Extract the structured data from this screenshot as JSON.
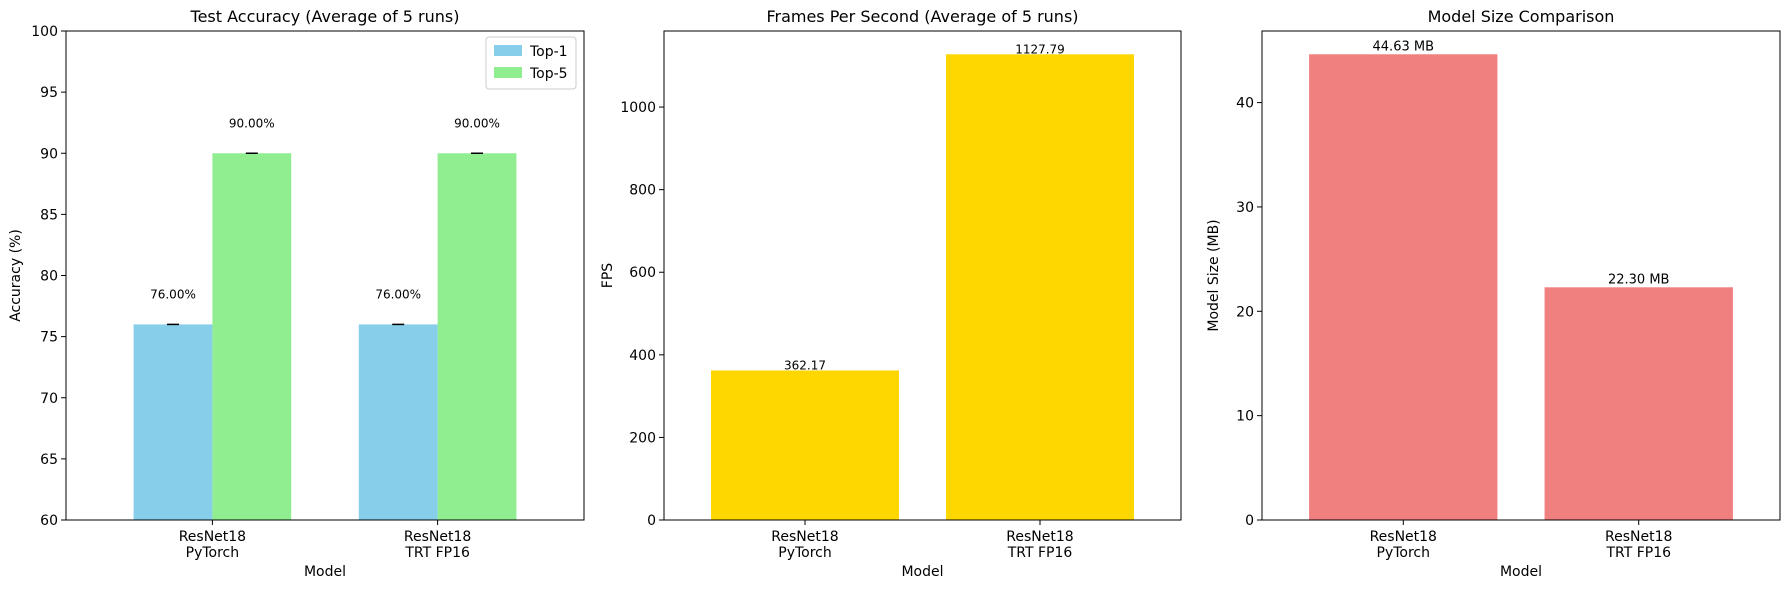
{
  "chart_data": [
    {
      "type": "bar",
      "title": "Test Accuracy (Average of 5 runs)",
      "xlabel": "Model",
      "ylabel": "Accuracy (%)",
      "categories": [
        [
          "ResNet18",
          "PyTorch"
        ],
        [
          "ResNet18",
          "TRT FP16"
        ]
      ],
      "ylim": [
        60,
        100
      ],
      "yticks": [
        60,
        65,
        70,
        75,
        80,
        85,
        90,
        95,
        100
      ],
      "grid": false,
      "legend": "top-right",
      "error_bars": true,
      "series": [
        {
          "name": "Top-1",
          "values": [
            76.0,
            76.0
          ],
          "labels": [
            "76.00%",
            "76.00%"
          ],
          "color": "#87ceeb"
        },
        {
          "name": "Top-5",
          "values": [
            90.0,
            90.0
          ],
          "labels": [
            "90.00%",
            "90.00%"
          ],
          "color": "#90ee90"
        }
      ]
    },
    {
      "type": "bar",
      "title": "Frames Per Second (Average of 5 runs)",
      "xlabel": "Model",
      "ylabel": "FPS",
      "categories": [
        [
          "ResNet18",
          "PyTorch"
        ],
        [
          "ResNet18",
          "TRT FP16"
        ]
      ],
      "ylim": [
        0,
        1184.2
      ],
      "yticks": [
        0,
        200,
        400,
        600,
        800,
        1000
      ],
      "grid": false,
      "series": [
        {
          "values": [
            362.17,
            1127.79
          ],
          "labels": [
            "362.17",
            "1127.79"
          ],
          "color": "#ffd700"
        }
      ]
    },
    {
      "type": "bar",
      "title": "Model Size Comparison",
      "xlabel": "Model",
      "ylabel": "Model Size (MB)",
      "categories": [
        [
          "ResNet18",
          "PyTorch"
        ],
        [
          "ResNet18",
          "TRT FP16"
        ]
      ],
      "ylim": [
        0,
        46.86
      ],
      "yticks": [
        0,
        10,
        20,
        30,
        40
      ],
      "grid": false,
      "series": [
        {
          "values": [
            44.63,
            22.3
          ],
          "labels": [
            "44.63 MB",
            "22.30 MB"
          ],
          "color": "#f08080"
        }
      ]
    }
  ]
}
